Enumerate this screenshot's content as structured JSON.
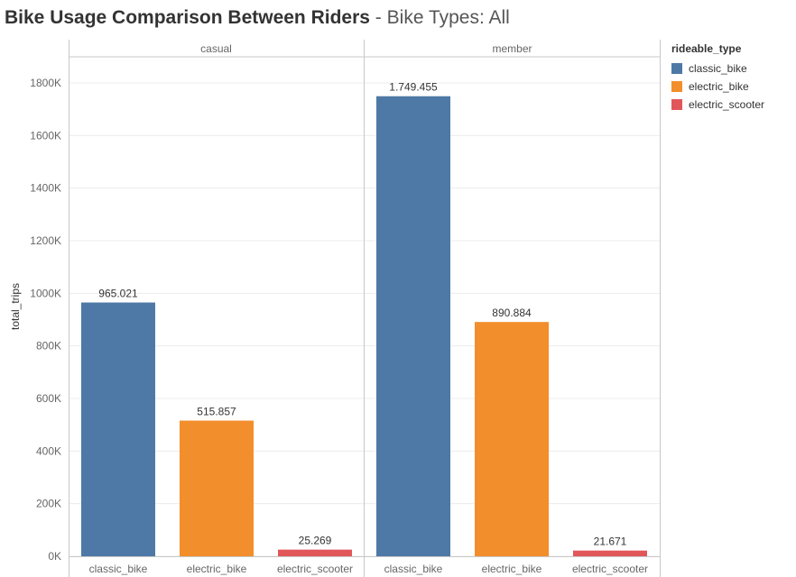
{
  "title": {
    "main": "Bike Usage Comparison Between Riders",
    "sep": " - ",
    "sub": "Bike Types: All"
  },
  "legend": {
    "title": "rideable_type",
    "items": [
      {
        "label": "classic_bike",
        "color": "#4e79a7"
      },
      {
        "label": "electric_bike",
        "color": "#f28e2b"
      },
      {
        "label": "electric_scooter",
        "color": "#e15759"
      }
    ]
  },
  "chart_data": {
    "type": "bar",
    "title": "Bike Usage Comparison Between Riders - Bike Types: All",
    "ylabel": "total_trips",
    "ylim": [
      0,
      1900000
    ],
    "yticks": [
      0,
      200000,
      400000,
      600000,
      800000,
      1000000,
      1200000,
      1400000,
      1600000,
      1800000
    ],
    "ytick_labels": [
      "0K",
      "200K",
      "400K",
      "600K",
      "800K",
      "1000K",
      "1200K",
      "1400K",
      "1600K",
      "1800K"
    ],
    "categories": [
      "classic_bike",
      "electric_bike",
      "electric_scooter"
    ],
    "panels": [
      {
        "name": "casual",
        "values": [
          965021,
          515857,
          25269
        ],
        "labels": [
          "965.021",
          "515.857",
          "25.269"
        ]
      },
      {
        "name": "member",
        "values": [
          1749455,
          890884,
          21671
        ],
        "labels": [
          "1.749.455",
          "890.884",
          "21.671"
        ]
      }
    ],
    "colors": {
      "classic_bike": "#4e79a7",
      "electric_bike": "#f28e2b",
      "electric_scooter": "#e15759"
    },
    "grid": true,
    "legend_position": "right"
  }
}
